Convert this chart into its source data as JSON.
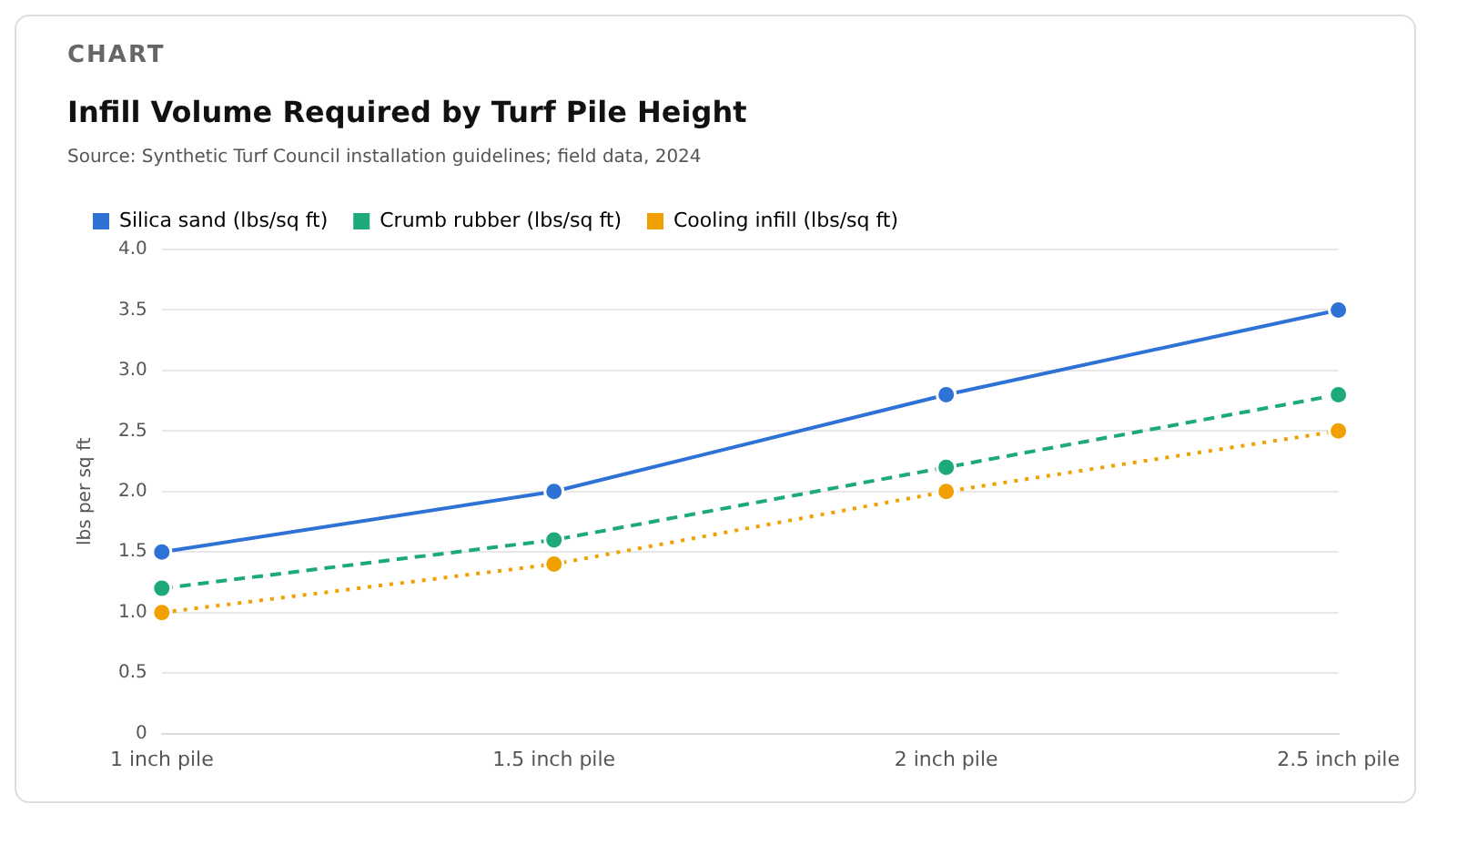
{
  "chart_data": {
    "type": "line",
    "title": "Infill Volume Required by Turf Pile Height",
    "annotations": [
      "CHART",
      "Source: Synthetic Turf Council installation guidelines; field data, 2024"
    ],
    "ylabel": "lbs per sq ft",
    "categories": [
      "1 inch pile",
      "1.5 inch pile",
      "2 inch pile",
      "2.5 inch pile"
    ],
    "series": [
      {
        "name": "Silica sand (lbs/sq ft)",
        "color": "#2f72d6",
        "line_style": "solid",
        "values": [
          1.5,
          2.0,
          2.8,
          3.5
        ]
      },
      {
        "name": "Crumb rubber (lbs/sq ft)",
        "color": "#1eaa78",
        "line_style": "dashed",
        "values": [
          1.2,
          1.6,
          2.2,
          2.8
        ]
      },
      {
        "name": "Cooling infill (lbs/sq ft)",
        "color": "#f0a000",
        "line_style": "dotted",
        "values": [
          1.0,
          1.4,
          2.0,
          2.5
        ]
      }
    ],
    "ylim": [
      0,
      4
    ],
    "yticks": [
      0,
      0.5,
      {
        "value": 1,
        "label": "1.0"
      },
      1.5,
      {
        "value": 2,
        "label": "2.0"
      },
      2.5,
      {
        "value": 3,
        "label": "3.0"
      },
      3.5,
      {
        "value": 4,
        "label": "4.0"
      }
    ],
    "grid": "y",
    "legend": "top left",
    "marker": "circle"
  }
}
